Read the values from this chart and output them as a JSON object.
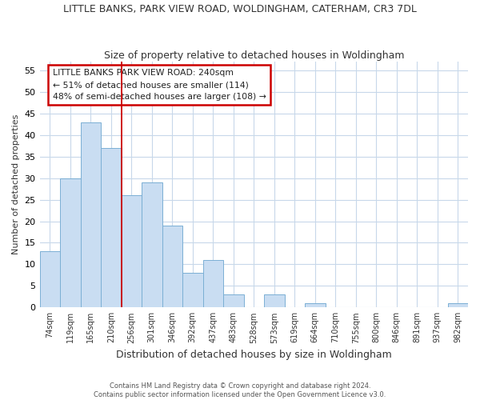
{
  "title": "LITTLE BANKS, PARK VIEW ROAD, WOLDINGHAM, CATERHAM, CR3 7DL",
  "subtitle": "Size of property relative to detached houses in Woldingham",
  "xlabel": "Distribution of detached houses by size in Woldingham",
  "ylabel": "Number of detached properties",
  "categories": [
    "74sqm",
    "119sqm",
    "165sqm",
    "210sqm",
    "256sqm",
    "301sqm",
    "346sqm",
    "392sqm",
    "437sqm",
    "483sqm",
    "528sqm",
    "573sqm",
    "619sqm",
    "664sqm",
    "710sqm",
    "755sqm",
    "800sqm",
    "846sqm",
    "891sqm",
    "937sqm",
    "982sqm"
  ],
  "values": [
    13,
    30,
    43,
    37,
    26,
    29,
    19,
    8,
    11,
    3,
    0,
    3,
    0,
    1,
    0,
    0,
    0,
    0,
    0,
    0,
    1
  ],
  "bar_color": "#c9ddf2",
  "bar_edge_color": "#7bafd4",
  "vline_color": "#cc0000",
  "annotation_text": "LITTLE BANKS PARK VIEW ROAD: 240sqm\n← 51% of detached houses are smaller (114)\n48% of semi-detached houses are larger (108) →",
  "annotation_box_color": "white",
  "annotation_box_edge": "#cc0000",
  "ylim": [
    0,
    57
  ],
  "yticks": [
    0,
    5,
    10,
    15,
    20,
    25,
    30,
    35,
    40,
    45,
    50,
    55
  ],
  "footer": "Contains HM Land Registry data © Crown copyright and database right 2024.\nContains public sector information licensed under the Open Government Licence v3.0.",
  "bg_color": "#ffffff",
  "plot_bg_color": "#ffffff",
  "grid_color": "#c8d8ea"
}
